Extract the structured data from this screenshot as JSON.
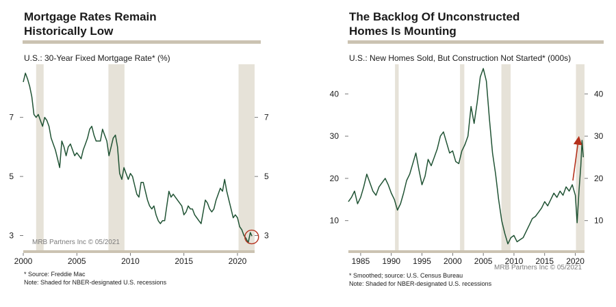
{
  "chart_data": [
    {
      "type": "line",
      "title": "Mortgage Rates Remain Historically Low",
      "title_lines": [
        "Mortgage Rates Remain",
        "Historically Low"
      ],
      "subtitle": "U.S.: 30-Year Fixed Mortgage Rate* (%)",
      "credit": "MRB Partners Inc © 05/2021",
      "footnotes": [
        "* Source: Freddie Mac",
        "Note: Shaded for NBER-designated U.S. recessions"
      ],
      "xlim": [
        2000,
        2021.6
      ],
      "ylim": [
        2.5,
        8.8
      ],
      "xticks": [
        2000,
        2005,
        2010,
        2015,
        2020
      ],
      "yticks": [
        3,
        5,
        7
      ],
      "recessions": [
        [
          2001.2,
          2001.9
        ],
        [
          2007.95,
          2009.45
        ],
        [
          2020.1,
          2021.6
        ]
      ],
      "series": [
        {
          "color": "#1f5233",
          "x": [
            2000.0,
            2000.2,
            2000.4,
            2000.6,
            2000.8,
            2001.0,
            2001.2,
            2001.4,
            2001.6,
            2001.8,
            2002.0,
            2002.2,
            2002.4,
            2002.6,
            2002.8,
            2003.0,
            2003.2,
            2003.4,
            2003.6,
            2003.8,
            2004.0,
            2004.2,
            2004.4,
            2004.6,
            2004.8,
            2005.0,
            2005.2,
            2005.4,
            2005.6,
            2005.8,
            2006.0,
            2006.2,
            2006.4,
            2006.6,
            2006.8,
            2007.0,
            2007.2,
            2007.4,
            2007.6,
            2007.8,
            2008.0,
            2008.2,
            2008.4,
            2008.6,
            2008.8,
            2009.0,
            2009.2,
            2009.4,
            2009.6,
            2009.8,
            2010.0,
            2010.2,
            2010.4,
            2010.6,
            2010.8,
            2011.0,
            2011.2,
            2011.4,
            2011.6,
            2011.8,
            2012.0,
            2012.2,
            2012.4,
            2012.6,
            2012.8,
            2013.0,
            2013.2,
            2013.4,
            2013.6,
            2013.8,
            2014.0,
            2014.2,
            2014.4,
            2014.6,
            2014.8,
            2015.0,
            2015.2,
            2015.4,
            2015.6,
            2015.8,
            2016.0,
            2016.2,
            2016.4,
            2016.6,
            2016.8,
            2017.0,
            2017.2,
            2017.4,
            2017.6,
            2017.8,
            2018.0,
            2018.2,
            2018.4,
            2018.6,
            2018.8,
            2019.0,
            2019.2,
            2019.4,
            2019.6,
            2019.8,
            2020.0,
            2020.2,
            2020.4,
            2020.6,
            2020.8,
            2021.0,
            2021.2,
            2021.35
          ],
          "values": [
            8.2,
            8.5,
            8.3,
            8.05,
            7.7,
            7.1,
            7.0,
            7.1,
            6.9,
            6.7,
            7.0,
            6.9,
            6.7,
            6.3,
            6.1,
            5.9,
            5.6,
            5.3,
            6.2,
            6.0,
            5.7,
            6.0,
            6.1,
            5.9,
            5.7,
            5.8,
            5.7,
            5.6,
            5.9,
            6.1,
            6.3,
            6.6,
            6.7,
            6.4,
            6.2,
            6.2,
            6.2,
            6.6,
            6.4,
            6.2,
            5.7,
            6.0,
            6.3,
            6.4,
            6.0,
            5.1,
            4.9,
            5.3,
            5.1,
            4.9,
            5.1,
            5.0,
            4.7,
            4.4,
            4.3,
            4.8,
            4.8,
            4.5,
            4.2,
            4.0,
            3.9,
            4.0,
            3.7,
            3.5,
            3.4,
            3.5,
            3.5,
            4.0,
            4.5,
            4.3,
            4.4,
            4.3,
            4.2,
            4.1,
            4.0,
            3.7,
            3.8,
            4.0,
            3.9,
            3.9,
            3.7,
            3.6,
            3.5,
            3.4,
            3.8,
            4.2,
            4.1,
            3.9,
            3.8,
            3.9,
            4.2,
            4.4,
            4.6,
            4.5,
            4.9,
            4.5,
            4.2,
            3.9,
            3.6,
            3.7,
            3.6,
            3.3,
            3.2,
            3.0,
            2.9,
            2.75,
            3.1,
            2.98
          ]
        }
      ],
      "annotation": "circle around latest values"
    },
    {
      "type": "line",
      "title": "The Backlog Of Unconstructed Homes Is Mounting",
      "title_lines": [
        "The Backlog Of Unconstructed",
        "Homes Is Mounting"
      ],
      "subtitle": "U.S.: New Homes Sold, But Construction Not Started* (000s)",
      "credit": "MRB Partners Inc © 05/2021",
      "footnotes": [
        "*  Smoothed; source: U.S. Census Bureau",
        "Note: Shaded for NBER-designated U.S. recessions"
      ],
      "xlim": [
        1983,
        2021.5
      ],
      "ylim": [
        3,
        47
      ],
      "xticks": [
        1985,
        1990,
        1995,
        2000,
        2005,
        2010,
        2015,
        2020
      ],
      "yticks": [
        10,
        20,
        30,
        40
      ],
      "recessions": [
        [
          1990.6,
          1991.2
        ],
        [
          2001.2,
          2001.9
        ],
        [
          2007.95,
          2009.45
        ],
        [
          2020.1,
          2021.5
        ]
      ],
      "series": [
        {
          "color": "#1f5233",
          "x": [
            1983.0,
            1983.5,
            1984.0,
            1984.5,
            1985.0,
            1985.5,
            1986.0,
            1986.5,
            1987.0,
            1987.5,
            1988.0,
            1988.5,
            1989.0,
            1989.5,
            1990.0,
            1990.5,
            1991.0,
            1991.5,
            1992.0,
            1992.5,
            1993.0,
            1993.5,
            1994.0,
            1994.5,
            1995.0,
            1995.5,
            1996.0,
            1996.5,
            1997.0,
            1997.5,
            1998.0,
            1998.5,
            1999.0,
            1999.5,
            2000.0,
            2000.5,
            2001.0,
            2001.5,
            2002.0,
            2002.5,
            2003.0,
            2003.5,
            2004.0,
            2004.5,
            2005.0,
            2005.5,
            2006.0,
            2006.5,
            2007.0,
            2007.5,
            2008.0,
            2008.5,
            2009.0,
            2009.5,
            2010.0,
            2010.5,
            2011.0,
            2011.5,
            2012.0,
            2012.5,
            2013.0,
            2013.5,
            2014.0,
            2014.5,
            2015.0,
            2015.5,
            2016.0,
            2016.5,
            2017.0,
            2017.5,
            2018.0,
            2018.5,
            2019.0,
            2019.5,
            2020.0,
            2020.3,
            2020.6,
            2020.9,
            2021.1,
            2021.3
          ],
          "values": [
            14.5,
            15.5,
            17.0,
            14.0,
            15.5,
            18.0,
            21.0,
            19.0,
            17.0,
            16.0,
            18.0,
            19.0,
            20.0,
            18.5,
            16.5,
            15.0,
            12.5,
            14.0,
            16.5,
            19.5,
            21.0,
            23.5,
            26.0,
            22.0,
            18.5,
            20.5,
            24.5,
            23.0,
            25.0,
            27.0,
            30.0,
            31.0,
            28.5,
            26.0,
            26.5,
            24.0,
            23.5,
            26.5,
            28.0,
            30.0,
            37.0,
            33.0,
            38.0,
            44.0,
            46.0,
            43.0,
            34.0,
            26.0,
            21.0,
            15.0,
            10.0,
            7.0,
            4.5,
            6.0,
            6.5,
            5.0,
            5.5,
            6.0,
            7.5,
            9.0,
            10.5,
            11.0,
            12.0,
            13.0,
            14.5,
            13.5,
            15.0,
            16.5,
            15.5,
            17.0,
            16.0,
            18.0,
            17.0,
            18.5,
            16.0,
            9.5,
            17.0,
            23.0,
            29.0,
            25.0
          ]
        }
      ],
      "annotation": "upward red arrow"
    }
  ],
  "colors": {
    "line": "#1f5233",
    "recession": "#e6e2d8",
    "bar": "#cbc3b2",
    "highlight": "#b5311c"
  }
}
